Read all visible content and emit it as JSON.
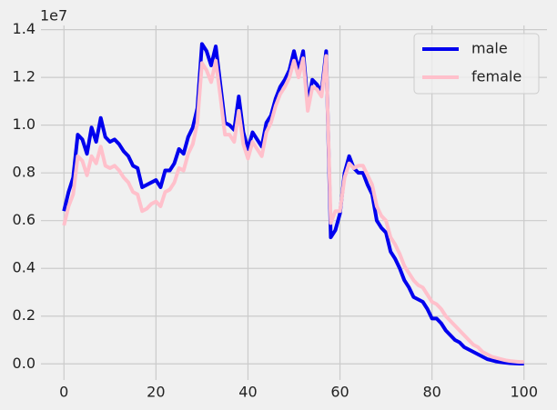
{
  "chart_data": {
    "type": "line",
    "offset_label": "1e7",
    "x": [
      0,
      1,
      2,
      3,
      4,
      5,
      6,
      7,
      8,
      9,
      10,
      11,
      12,
      13,
      14,
      15,
      16,
      17,
      18,
      19,
      20,
      21,
      22,
      23,
      24,
      25,
      26,
      27,
      28,
      29,
      30,
      31,
      32,
      33,
      34,
      35,
      36,
      37,
      38,
      39,
      40,
      41,
      42,
      43,
      44,
      45,
      46,
      47,
      48,
      49,
      50,
      51,
      52,
      53,
      54,
      55,
      56,
      57,
      58,
      59,
      60,
      61,
      62,
      63,
      64,
      65,
      66,
      67,
      68,
      69,
      70,
      71,
      72,
      73,
      74,
      75,
      76,
      77,
      78,
      79,
      80,
      81,
      82,
      83,
      84,
      85,
      86,
      87,
      88,
      89,
      90,
      91,
      92,
      93,
      94,
      95,
      96,
      97,
      98,
      99,
      100
    ],
    "series": [
      {
        "name": "male",
        "color": "#0000ee",
        "values": [
          6400000,
          7200000,
          7800000,
          9600000,
          9400000,
          8800000,
          9900000,
          9300000,
          10300000,
          9500000,
          9300000,
          9400000,
          9200000,
          8900000,
          8700000,
          8300000,
          8200000,
          7400000,
          7500000,
          7600000,
          7700000,
          7400000,
          8100000,
          8100000,
          8400000,
          9000000,
          8800000,
          9500000,
          9900000,
          10700000,
          13400000,
          13100000,
          12500000,
          13300000,
          11700000,
          10100000,
          10000000,
          9800000,
          11200000,
          9700000,
          9000000,
          9700000,
          9400000,
          9100000,
          10100000,
          10400000,
          11100000,
          11600000,
          11900000,
          12300000,
          13100000,
          12300000,
          13100000,
          10900000,
          11900000,
          11700000,
          11400000,
          13100000,
          5300000,
          5600000,
          6300000,
          8000000,
          8700000,
          8200000,
          8000000,
          8000000,
          7500000,
          7100000,
          6000000,
          5700000,
          5500000,
          4700000,
          4400000,
          4000000,
          3500000,
          3200000,
          2800000,
          2700000,
          2600000,
          2300000,
          1900000,
          1900000,
          1700000,
          1400000,
          1200000,
          1000000,
          900000,
          700000,
          600000,
          500000,
          400000,
          300000,
          200000,
          150000,
          100000,
          70000,
          50000,
          30000,
          20000,
          10000,
          10000
        ]
      },
      {
        "name": "female",
        "color": "#ffc0cb",
        "values": [
          5800000,
          6600000,
          7100000,
          8700000,
          8500000,
          7900000,
          8700000,
          8400000,
          9100000,
          8300000,
          8200000,
          8300000,
          8100000,
          7800000,
          7600000,
          7200000,
          7100000,
          6400000,
          6500000,
          6700000,
          6800000,
          6600000,
          7200000,
          7300000,
          7600000,
          8200000,
          8100000,
          8800000,
          9200000,
          10100000,
          12600000,
          12300000,
          11800000,
          12700000,
          11200000,
          9600000,
          9600000,
          9300000,
          10600000,
          9200000,
          8600000,
          9300000,
          9000000,
          8700000,
          9700000,
          10100000,
          10800000,
          11300000,
          11600000,
          12000000,
          12700000,
          12000000,
          12800000,
          10600000,
          11600000,
          11500000,
          11200000,
          12900000,
          5900000,
          6400000,
          6400000,
          7800000,
          8400000,
          8200000,
          8300000,
          8300000,
          7900000,
          7500000,
          6600000,
          6200000,
          6000000,
          5300000,
          5000000,
          4600000,
          4100000,
          3800000,
          3500000,
          3300000,
          3200000,
          2900000,
          2600000,
          2500000,
          2300000,
          2000000,
          1800000,
          1600000,
          1400000,
          1200000,
          1000000,
          800000,
          700000,
          500000,
          400000,
          300000,
          250000,
          200000,
          150000,
          120000,
          100000,
          80000,
          80000
        ]
      }
    ],
    "xlim": [
      -5,
      105
    ],
    "xticks": [
      0,
      20,
      40,
      60,
      80,
      100
    ],
    "ylim": [
      -675000,
      14175000
    ],
    "yticks": [
      {
        "value": 0,
        "label": "0.0"
      },
      {
        "value": 2000000,
        "label": "0.2"
      },
      {
        "value": 4000000,
        "label": "0.4"
      },
      {
        "value": 6000000,
        "label": "0.6"
      },
      {
        "value": 8000000,
        "label": "0.8"
      },
      {
        "value": 10000000,
        "label": "1.0"
      },
      {
        "value": 12000000,
        "label": "1.2"
      },
      {
        "value": 14000000,
        "label": "1.4"
      }
    ],
    "grid": true,
    "legend": "upper right"
  }
}
